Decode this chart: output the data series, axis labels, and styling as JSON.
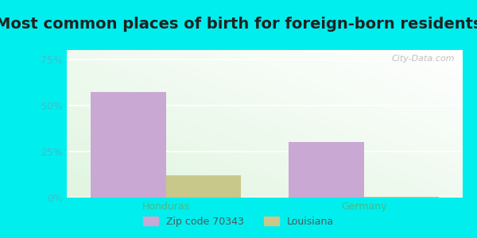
{
  "title": "Most common places of birth for foreign-born residents",
  "categories": [
    "Honduras",
    "Germany"
  ],
  "zipcode_values": [
    0.57,
    0.3
  ],
  "louisiana_values": [
    0.12,
    0.005
  ],
  "zipcode_color": "#c9a8d4",
  "louisiana_color": "#c8c88a",
  "bar_width": 0.38,
  "ylim": [
    0,
    0.8
  ],
  "yticks": [
    0,
    0.25,
    0.5,
    0.75
  ],
  "ytick_labels": [
    "0%",
    "25%",
    "50%",
    "75%"
  ],
  "xtick_color": "#44bb88",
  "ytick_color": "#44bbcc",
  "background_color": "#00eeee",
  "legend_label1": "Zip code 70343",
  "legend_label2": "Louisiana",
  "watermark": "City-Data.com",
  "title_fontsize": 14,
  "tick_fontsize": 9,
  "legend_fontsize": 9
}
